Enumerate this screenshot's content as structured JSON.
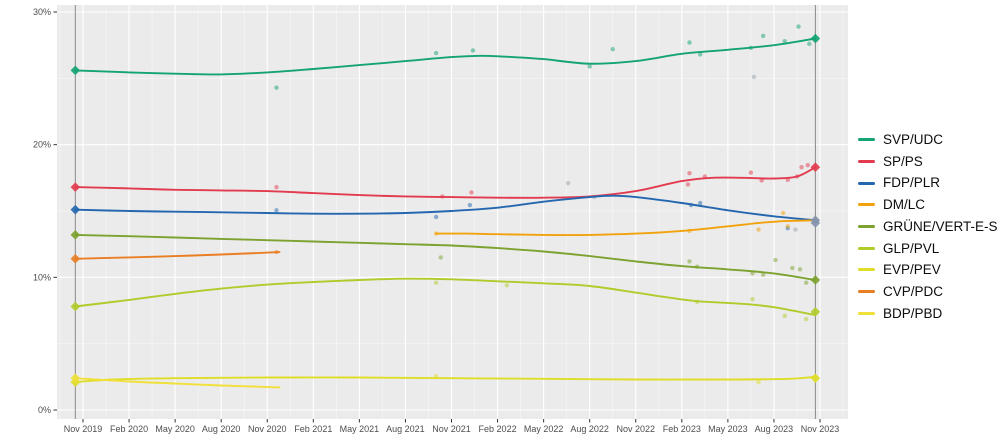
{
  "chart_data": {
    "type": "line",
    "title": "",
    "x_axis": {
      "tick_labels": [
        "Nov 2019",
        "Feb 2020",
        "May 2020",
        "Aug 2020",
        "Nov 2020",
        "Feb 2021",
        "May 2021",
        "Aug 2021",
        "Nov 2021",
        "Feb 2022",
        "May 2022",
        "Aug 2022",
        "Nov 2022",
        "Feb 2023",
        "May 2023",
        "Aug 2023",
        "Nov 2023"
      ],
      "tick_months": [
        0,
        3,
        6,
        9,
        12,
        15,
        18,
        21,
        24,
        27,
        30,
        33,
        36,
        39,
        42,
        45,
        48
      ],
      "range_months": [
        -1.7,
        49.8
      ]
    },
    "y_axis": {
      "tick_labels": [
        "0%",
        "10%",
        "20%",
        "30%"
      ],
      "tick_values": [
        0,
        10,
        20,
        30
      ],
      "minor_values": [
        5,
        15,
        25
      ],
      "range": [
        -0.7,
        30.6
      ]
    },
    "elections": [
      {
        "name": "federal-election-2019",
        "month": -0.5
      },
      {
        "name": "federal-election-2023",
        "month": 47.7
      }
    ],
    "legend_position": "right",
    "grid": true,
    "series": [
      {
        "name": "SVP/UDC",
        "color": "#13a374",
        "trend": [
          [
            -0.5,
            25.6
          ],
          [
            3,
            25.45
          ],
          [
            6,
            25.35
          ],
          [
            9,
            25.3
          ],
          [
            12,
            25.45
          ],
          [
            15,
            25.7
          ],
          [
            18,
            26.0
          ],
          [
            21,
            26.3
          ],
          [
            24,
            26.6
          ],
          [
            26,
            26.7
          ],
          [
            28,
            26.6
          ],
          [
            30,
            26.45
          ],
          [
            33,
            26.1
          ],
          [
            36,
            26.3
          ],
          [
            39,
            26.85
          ],
          [
            42,
            27.15
          ],
          [
            45,
            27.5
          ],
          [
            47.7,
            28.0
          ]
        ],
        "scatter": [
          [
            12.6,
            24.3
          ],
          [
            23,
            26.9
          ],
          [
            25.4,
            27.1
          ],
          [
            33,
            25.9
          ],
          [
            34.5,
            27.2
          ],
          [
            39.5,
            27.7
          ],
          [
            40.2,
            26.8
          ],
          [
            43.5,
            27.3
          ],
          [
            44.3,
            28.2
          ],
          [
            45.7,
            27.8
          ],
          [
            46.6,
            28.9
          ],
          [
            47.3,
            27.6
          ]
        ],
        "result_2019": 25.6,
        "result_2023": 28.0,
        "result_2023_color": "#13a374"
      },
      {
        "name": "SP/PS",
        "color": "#e23b4f",
        "trend": [
          [
            -0.5,
            16.8
          ],
          [
            3,
            16.7
          ],
          [
            6,
            16.6
          ],
          [
            9,
            16.55
          ],
          [
            12,
            16.5
          ],
          [
            15,
            16.35
          ],
          [
            18,
            16.2
          ],
          [
            21,
            16.1
          ],
          [
            24,
            16.05
          ],
          [
            27,
            16.0
          ],
          [
            30,
            16.0
          ],
          [
            33,
            16.1
          ],
          [
            36,
            16.5
          ],
          [
            39,
            17.25
          ],
          [
            41,
            17.5
          ],
          [
            43,
            17.5
          ],
          [
            45,
            17.45
          ],
          [
            46.5,
            17.6
          ],
          [
            47.7,
            18.3
          ]
        ],
        "scatter": [
          [
            12.6,
            16.8
          ],
          [
            23.4,
            16.1
          ],
          [
            25.3,
            16.4
          ],
          [
            39.4,
            17.0
          ],
          [
            39.5,
            17.85
          ],
          [
            40.5,
            17.6
          ],
          [
            43.5,
            17.9
          ],
          [
            44.2,
            17.3
          ],
          [
            45.9,
            17.35
          ],
          [
            46.5,
            17.6
          ],
          [
            46.8,
            18.3
          ],
          [
            47.2,
            18.45
          ]
        ],
        "result_2019": 16.8,
        "result_2023": 18.3,
        "result_2023_color": "#e23b4f"
      },
      {
        "name": "FDP/PLR",
        "color": "#2467af",
        "trend": [
          [
            -0.5,
            15.1
          ],
          [
            3,
            15.0
          ],
          [
            6,
            14.95
          ],
          [
            9,
            14.9
          ],
          [
            12,
            14.85
          ],
          [
            15,
            14.8
          ],
          [
            18,
            14.8
          ],
          [
            21,
            14.85
          ],
          [
            24,
            15.0
          ],
          [
            27,
            15.25
          ],
          [
            30,
            15.7
          ],
          [
            33,
            16.05
          ],
          [
            34.5,
            16.15
          ],
          [
            36,
            16.05
          ],
          [
            39,
            15.6
          ],
          [
            42,
            15.05
          ],
          [
            45,
            14.6
          ],
          [
            47.7,
            14.3
          ]
        ],
        "scatter": [
          [
            12.6,
            15.05
          ],
          [
            23,
            14.55
          ],
          [
            25.2,
            15.45
          ],
          [
            39.6,
            15.45
          ],
          [
            40.2,
            15.6
          ],
          [
            45.9,
            13.7
          ]
        ],
        "result_2019": 15.1,
        "result_2023": 14.3,
        "result_2023_color": "#8494ab"
      },
      {
        "name": "DM/LC",
        "color": "#f2a20c",
        "trend": [
          [
            23,
            13.3
          ],
          [
            25,
            13.3
          ],
          [
            27,
            13.25
          ],
          [
            30,
            13.2
          ],
          [
            33,
            13.2
          ],
          [
            36,
            13.3
          ],
          [
            39,
            13.5
          ],
          [
            42,
            13.85
          ],
          [
            44.5,
            14.15
          ],
          [
            46,
            14.25
          ],
          [
            47.7,
            14.3
          ]
        ],
        "scatter": [
          [
            23,
            13.3
          ],
          [
            39.5,
            13.5
          ],
          [
            44,
            13.6
          ],
          [
            45.6,
            14.85
          ],
          [
            45.9,
            13.85
          ]
        ],
        "result_2019": null,
        "result_2023": 14.1,
        "result_2023_color": "#8494ab"
      },
      {
        "name": "GRÜNE/VERT-E-S",
        "color": "#7ca22f",
        "trend": [
          [
            -0.5,
            13.2
          ],
          [
            3,
            13.1
          ],
          [
            6,
            13.0
          ],
          [
            9,
            12.9
          ],
          [
            12,
            12.8
          ],
          [
            15,
            12.7
          ],
          [
            18,
            12.6
          ],
          [
            21,
            12.5
          ],
          [
            24,
            12.4
          ],
          [
            27,
            12.2
          ],
          [
            30,
            11.95
          ],
          [
            33,
            11.6
          ],
          [
            36,
            11.2
          ],
          [
            39,
            10.85
          ],
          [
            42,
            10.6
          ],
          [
            45,
            10.3
          ],
          [
            47.7,
            9.8
          ]
        ],
        "scatter": [
          [
            23.3,
            11.5
          ],
          [
            39.5,
            11.2
          ],
          [
            40,
            10.8
          ],
          [
            43.6,
            10.3
          ],
          [
            44.3,
            10.2
          ],
          [
            45.1,
            11.3
          ],
          [
            46.2,
            10.7
          ],
          [
            46.7,
            10.6
          ],
          [
            47.1,
            9.6
          ]
        ],
        "result_2019": 13.2,
        "result_2023": 9.8,
        "result_2023_color": "#7ca22f"
      },
      {
        "name": "GLP/PVL",
        "color": "#b1cb2a",
        "trend": [
          [
            -0.5,
            7.8
          ],
          [
            3,
            8.3
          ],
          [
            6,
            8.75
          ],
          [
            9,
            9.15
          ],
          [
            12,
            9.45
          ],
          [
            15,
            9.65
          ],
          [
            18,
            9.8
          ],
          [
            21,
            9.9
          ],
          [
            24,
            9.85
          ],
          [
            27,
            9.7
          ],
          [
            30,
            9.55
          ],
          [
            33,
            9.35
          ],
          [
            36,
            8.85
          ],
          [
            38,
            8.5
          ],
          [
            40,
            8.2
          ],
          [
            43,
            8.0
          ],
          [
            45,
            7.75
          ],
          [
            47.7,
            7.15
          ]
        ],
        "scatter": [
          [
            23,
            9.6
          ],
          [
            27.6,
            9.4
          ],
          [
            40,
            8.15
          ],
          [
            43.6,
            8.35
          ],
          [
            45.7,
            7.1
          ],
          [
            47.1,
            6.85
          ]
        ],
        "result_2019": 7.8,
        "result_2023": 7.4,
        "result_2023_color": "#b1cb2a"
      },
      {
        "name": "EVP/PEV",
        "color": "#dfdd26",
        "trend": [
          [
            -0.5,
            2.1
          ],
          [
            2,
            2.3
          ],
          [
            6,
            2.4
          ],
          [
            12,
            2.45
          ],
          [
            18,
            2.45
          ],
          [
            24,
            2.4
          ],
          [
            30,
            2.35
          ],
          [
            36,
            2.3
          ],
          [
            42,
            2.3
          ],
          [
            46,
            2.35
          ],
          [
            47.7,
            2.5
          ]
        ],
        "scatter": [
          [
            23,
            2.55
          ],
          [
            44,
            2.1
          ]
        ],
        "result_2019": 2.1,
        "result_2023": 2.4,
        "result_2023_color": "#dfdd26"
      },
      {
        "name": "CVP/PDC",
        "color": "#e97e23",
        "trend": [
          [
            -0.5,
            11.4
          ],
          [
            3,
            11.5
          ],
          [
            6,
            11.6
          ],
          [
            9,
            11.72
          ],
          [
            12.8,
            11.9
          ]
        ],
        "scatter": [
          [
            12.6,
            11.9
          ]
        ],
        "result_2019": 11.4,
        "result_2023": null
      },
      {
        "name": "BDP/PBD",
        "color": "#f1e03a",
        "trend": [
          [
            -0.5,
            2.4
          ],
          [
            3,
            2.15
          ],
          [
            6,
            2.0
          ],
          [
            9,
            1.85
          ],
          [
            12.8,
            1.7
          ]
        ],
        "scatter": [],
        "result_2019": 2.4,
        "result_2023": null
      }
    ],
    "misc_scatter": {
      "name": "unassigned-polls",
      "color": "#9aa3ad",
      "points": [
        [
          31.6,
          17.1
        ],
        [
          33.3,
          16.05
        ],
        [
          43.7,
          25.1
        ],
        [
          46.4,
          13.6
        ]
      ]
    }
  }
}
